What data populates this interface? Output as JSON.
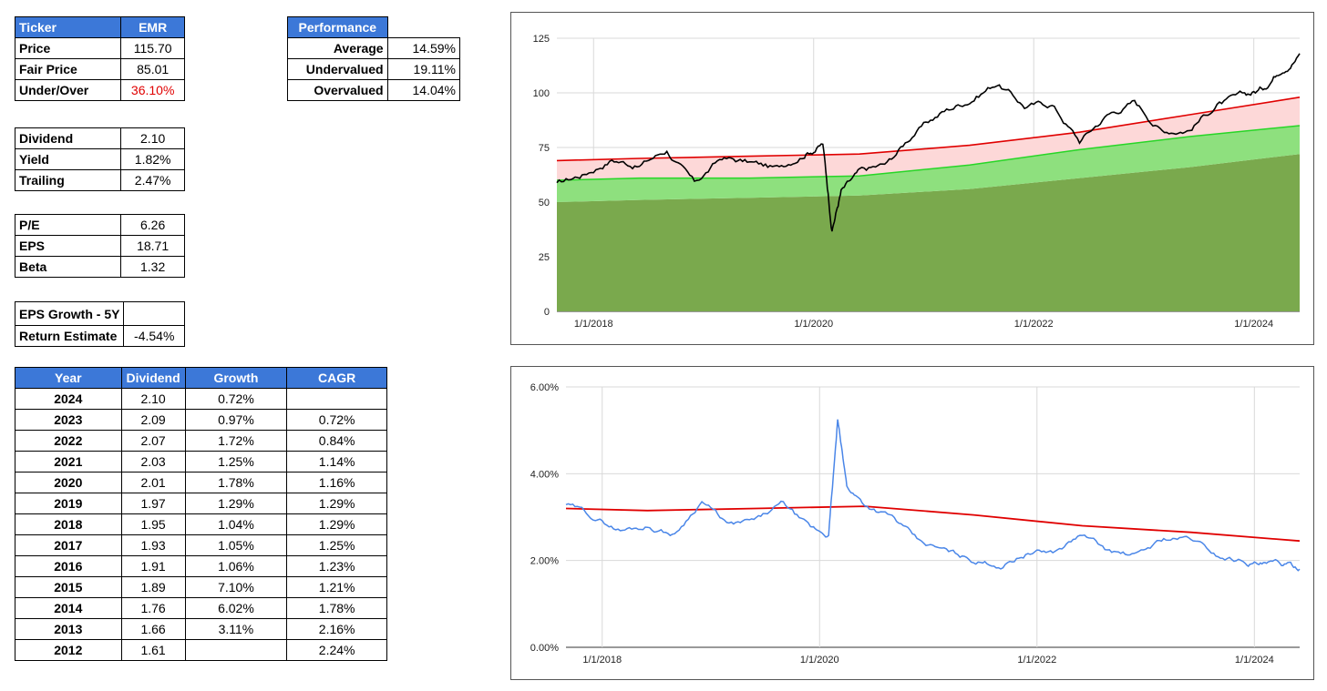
{
  "summary": {
    "header": [
      "Ticker",
      "EMR"
    ],
    "rows": [
      {
        "label": "Price",
        "value": "115.70"
      },
      {
        "label": "Fair Price",
        "value": "85.01"
      },
      {
        "label": "Under/Over",
        "value": "36.10%"
      }
    ]
  },
  "performance": {
    "header": "Performance",
    "rows": [
      {
        "label": "Average",
        "value": "14.59%"
      },
      {
        "label": "Undervalued",
        "value": "19.11%"
      },
      {
        "label": "Overvalued",
        "value": "14.04%"
      }
    ]
  },
  "dividend_info": [
    {
      "label": "Dividend",
      "value": "2.10"
    },
    {
      "label": "Yield",
      "value": "1.82%"
    },
    {
      "label": "Trailing",
      "value": "2.47%"
    }
  ],
  "valuation": [
    {
      "label": "P/E",
      "value": "6.26"
    },
    {
      "label": "EPS",
      "value": "18.71"
    },
    {
      "label": "Beta",
      "value": "1.32"
    }
  ],
  "growth": [
    {
      "label": "EPS Growth - 5Y",
      "value": ""
    },
    {
      "label": "Return Estimate",
      "value": "-4.54%"
    }
  ],
  "dividend_table": {
    "headers": [
      "Year",
      "Dividend",
      "Growth",
      "CAGR"
    ],
    "rows": [
      [
        "2024",
        "2.10",
        "0.72%",
        ""
      ],
      [
        "2023",
        "2.09",
        "0.97%",
        "0.72%"
      ],
      [
        "2022",
        "2.07",
        "1.72%",
        "0.84%"
      ],
      [
        "2021",
        "2.03",
        "1.25%",
        "1.14%"
      ],
      [
        "2020",
        "2.01",
        "1.78%",
        "1.16%"
      ],
      [
        "2019",
        "1.97",
        "1.29%",
        "1.29%"
      ],
      [
        "2018",
        "1.95",
        "1.04%",
        "1.29%"
      ],
      [
        "2017",
        "1.93",
        "1.05%",
        "1.25%"
      ],
      [
        "2016",
        "1.91",
        "1.06%",
        "1.23%"
      ],
      [
        "2015",
        "1.89",
        "7.10%",
        "1.21%"
      ],
      [
        "2014",
        "1.76",
        "6.02%",
        "1.78%"
      ],
      [
        "2013",
        "1.66",
        "3.11%",
        "2.16%"
      ],
      [
        "2012",
        "1.61",
        "",
        "2.24%"
      ]
    ]
  },
  "chart_data": [
    {
      "type": "line",
      "title": "",
      "xlabel": "",
      "ylabel": "",
      "x_ticks": [
        "1/1/2018",
        "1/1/2020",
        "1/1/2022",
        "1/1/2024"
      ],
      "y_ticks": [
        "0",
        "25",
        "50",
        "75",
        "100",
        "125"
      ],
      "ylim": [
        0,
        125
      ],
      "x_range": [
        "2017-09",
        "2024-06"
      ],
      "grid": true,
      "colors": {
        "price": "#000000",
        "fair": "#e00000",
        "fair_fill": "#fdd8d8",
        "low": "#27d627",
        "low_fill": "#8ee07e",
        "base_fill": "#7aa94d"
      },
      "series": [
        {
          "x": [
            "2017-09",
            "2017-12",
            "2018-03",
            "2018-06",
            "2018-09",
            "2018-12",
            "2019-03",
            "2019-06",
            "2019-09",
            "2019-12",
            "2020-02",
            "2020-03",
            "2020-04",
            "2020-06",
            "2020-09",
            "2020-12",
            "2021-03",
            "2021-06",
            "2021-09",
            "2021-12",
            "2022-03",
            "2022-06",
            "2022-09",
            "2022-12",
            "2023-03",
            "2023-06",
            "2023-09",
            "2023-12",
            "2024-02",
            "2024-04",
            "2024-06"
          ],
          "values": [
            58,
            63,
            70,
            67,
            74,
            58,
            70,
            68,
            65,
            73,
            77,
            38,
            55,
            63,
            67,
            82,
            91,
            97,
            105,
            94,
            95,
            78,
            90,
            96,
            83,
            84,
            95,
            98,
            102,
            112,
            118
          ]
        },
        {
          "x": [
            "2017-09",
            "2018-06",
            "2019-06",
            "2020-06",
            "2021-06",
            "2022-06",
            "2023-06",
            "2024-06"
          ],
          "values": [
            69,
            70,
            71,
            72,
            76,
            82,
            90,
            98
          ]
        },
        {
          "x": [
            "2017-09",
            "2018-06",
            "2019-06",
            "2020-06",
            "2021-06",
            "2022-06",
            "2023-06",
            "2024-06"
          ],
          "values": [
            60,
            61,
            61,
            62,
            67,
            74,
            80,
            85
          ]
        },
        {
          "x": [
            "2017-09",
            "2018-06",
            "2019-06",
            "2020-06",
            "2021-06",
            "2022-06",
            "2023-06",
            "2024-06"
          ],
          "values": [
            50,
            51,
            52,
            53,
            56,
            61,
            66,
            72
          ]
        }
      ]
    },
    {
      "type": "line",
      "title": "",
      "xlabel": "",
      "ylabel": "",
      "x_ticks": [
        "1/1/2018",
        "1/1/2020",
        "1/1/2022",
        "1/1/2024"
      ],
      "y_ticks": [
        "0.00%",
        "2.00%",
        "4.00%",
        "6.00%"
      ],
      "ylim": [
        0,
        6
      ],
      "x_range": [
        "2017-09",
        "2024-06"
      ],
      "grid": true,
      "colors": {
        "yield": "#4a86e8",
        "avg": "#e00000"
      },
      "series": [
        {
          "x": [
            "2017-09",
            "2017-12",
            "2018-03",
            "2018-06",
            "2018-09",
            "2018-12",
            "2019-03",
            "2019-06",
            "2019-09",
            "2019-12",
            "2020-02",
            "2020-03",
            "2020-04",
            "2020-06",
            "2020-09",
            "2020-12",
            "2021-03",
            "2021-06",
            "2021-09",
            "2021-12",
            "2022-03",
            "2022-06",
            "2022-09",
            "2022-12",
            "2023-03",
            "2023-06",
            "2023-09",
            "2023-12",
            "2024-02",
            "2024-04",
            "2024-06"
          ],
          "values": [
            3.3,
            3.0,
            2.7,
            2.8,
            2.6,
            3.4,
            2.8,
            2.9,
            3.3,
            2.7,
            2.6,
            5.2,
            3.7,
            3.3,
            3.0,
            2.4,
            2.2,
            2.0,
            1.9,
            2.2,
            2.2,
            2.6,
            2.2,
            2.1,
            2.5,
            2.5,
            2.1,
            2.0,
            1.9,
            1.9,
            1.8
          ]
        },
        {
          "x": [
            "2017-09",
            "2018-06",
            "2019-06",
            "2020-06",
            "2021-06",
            "2022-06",
            "2023-06",
            "2024-06"
          ],
          "values": [
            3.2,
            3.15,
            3.2,
            3.25,
            3.05,
            2.8,
            2.65,
            2.45
          ]
        }
      ]
    }
  ]
}
